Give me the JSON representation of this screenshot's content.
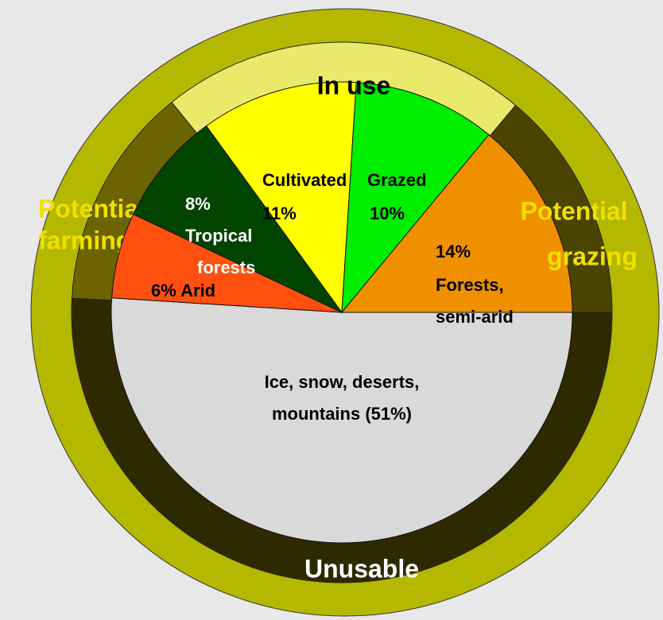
{
  "chart_data": {
    "type": "pie",
    "values": [
      51,
      6,
      8,
      11,
      10,
      14
    ],
    "labels": [
      [
        "Ice, snow, deserts,",
        "mountains (51%)"
      ],
      [
        "6% Arid"
      ],
      [
        "8%",
        "Tropical",
        "forests"
      ],
      [
        "Cultivated",
        "11%"
      ],
      [
        "Grazed",
        "10%"
      ],
      [
        "14%",
        "Forests,",
        "semi-arid"
      ]
    ],
    "colors": [
      "#d9d9d9",
      "#ff5010",
      "#004400",
      "#ffff00",
      "#00ee00",
      "#f09000"
    ],
    "ring": [
      {
        "label": [
          "In use"
        ],
        "color": "#eaea6a"
      },
      {
        "label": [
          "Potential",
          "grazing"
        ],
        "color": "#4a4400"
      },
      {
        "label": [
          "Unusable"
        ],
        "color": "#2e2a00"
      },
      {
        "label": [
          "Potential",
          "farming"
        ],
        "color": "#6b6400"
      }
    ]
  }
}
